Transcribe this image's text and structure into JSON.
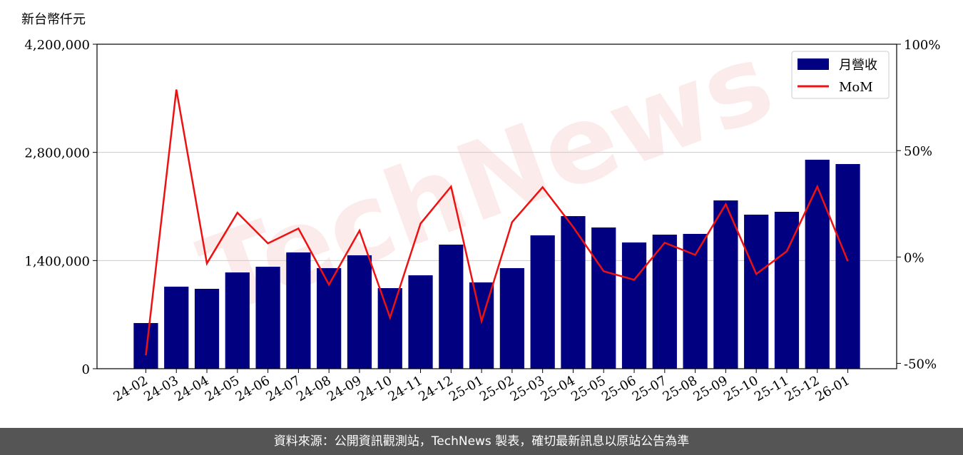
{
  "chart_data": {
    "type": "bar_line",
    "y_axis_label": "新台幣仟元",
    "watermark": "TechNews",
    "source": "資料來源：公開資訊觀測站，TechNews 製表，確切最新訊息以原站公告為準",
    "categories": [
      "24-02",
      "24-03",
      "24-04",
      "24-05",
      "24-06",
      "24-07",
      "24-08",
      "24-09",
      "24-10",
      "24-11",
      "24-12",
      "25-01",
      "25-02",
      "25-03",
      "25-04",
      "25-05",
      "25-06",
      "25-07",
      "25-08",
      "25-09",
      "25-10",
      "25-11",
      "25-12",
      "26-01"
    ],
    "series": [
      {
        "name": "月營收",
        "type": "bar",
        "color": "#000080",
        "values": [
          591000,
          1062000,
          1034000,
          1246000,
          1320000,
          1505000,
          1302000,
          1468000,
          1043000,
          1209000,
          1606000,
          1117000,
          1302000,
          1726000,
          1975000,
          1828000,
          1634000,
          1735000,
          1745000,
          2178000,
          1994000,
          2031000,
          2705000,
          2649000
        ]
      },
      {
        "name": "MoM",
        "type": "line",
        "axis": "y2",
        "color": "#ee1111",
        "values": [
          -46.2,
          78.7,
          -3,
          20.8,
          6.4,
          13.4,
          -13,
          12.4,
          -28.5,
          15.7,
          33.1,
          -30.1,
          16.4,
          32.8,
          14.1,
          -6.7,
          -10.7,
          6.7,
          1,
          24.8,
          -8,
          2.7,
          33.1,
          -2
        ]
      }
    ],
    "ylim": [
      0,
      4200000
    ],
    "yticks": [
      0,
      {
        "value": 1400000,
        "label": "1,400,000"
      },
      {
        "value": 2800000,
        "label": "2,800,000"
      },
      {
        "value": 4200000,
        "label": "4,200,000"
      }
    ],
    "y2lim": [
      -52.5,
      100
    ],
    "y2ticks": [
      {
        "value": -50,
        "label": "-50%"
      },
      {
        "value": 0,
        "label": "0%"
      },
      {
        "value": 50,
        "label": "50%"
      },
      {
        "value": 100,
        "label": "100%"
      }
    ],
    "grid": true,
    "legend": "upper right"
  }
}
